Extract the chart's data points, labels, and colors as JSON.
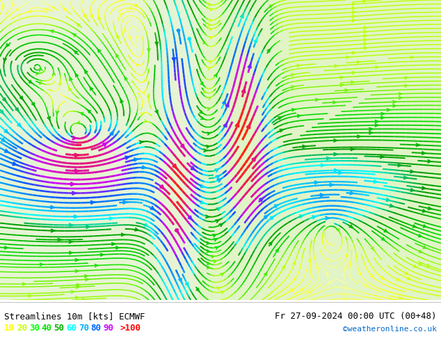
{
  "title_left": "Streamlines 10m [kts] ECMWF",
  "title_right": "Fr 27-09-2024 00:00 UTC (00+48)",
  "credit": "©weatheronline.co.uk",
  "legend_values": [
    "10",
    "20",
    "30",
    "40",
    "50",
    "60",
    "70",
    "80",
    "90",
    ">100"
  ],
  "legend_colors": [
    "#ffff00",
    "#c8ff00",
    "#00ff00",
    "#00e600",
    "#00b300",
    "#00ffff",
    "#00b3ff",
    "#0066ff",
    "#cc00ff",
    "#ff0000"
  ],
  "bg_color": "#ffffff",
  "map_bg": "#f0f0f0",
  "streamline_colors": {
    "low": "#ffff00",
    "mid_low": "#aaff00",
    "mid": "#00cc00",
    "mid_high": "#00ffaa",
    "high": "#00ccff",
    "very_high": "#ff6600"
  },
  "figsize": [
    6.34,
    4.9
  ],
  "dpi": 100
}
